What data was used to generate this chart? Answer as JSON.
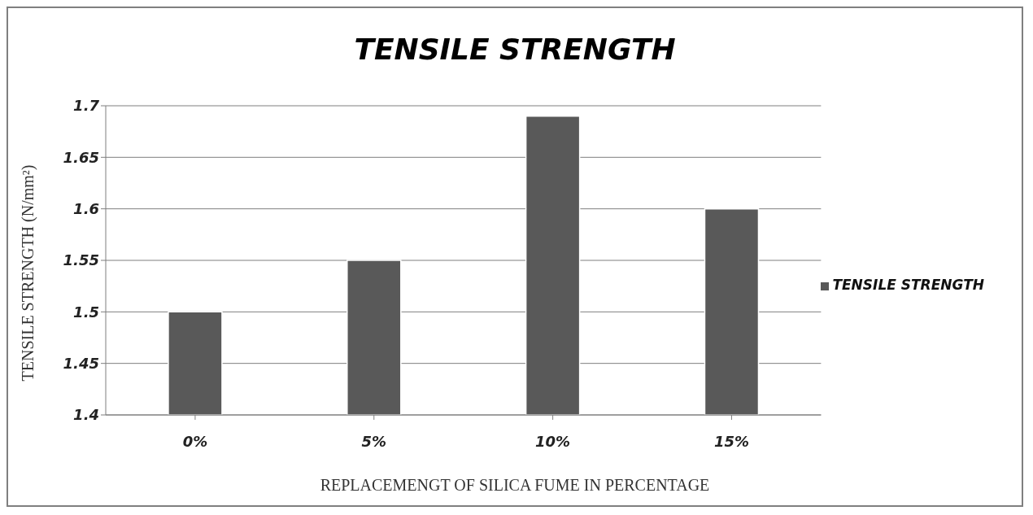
{
  "chart_data": {
    "type": "bar",
    "title": "TENSILE STRENGTH",
    "xlabel": "REPLACEMENGT OF SILICA FUME IN PERCENTAGE",
    "ylabel": "TENSILE STRENGTH (N/mm²)",
    "categories": [
      "0%",
      "5%",
      "10%",
      "15%"
    ],
    "series": [
      {
        "name": "TENSILE STRENGTH",
        "color": "#595959",
        "values": [
          1.5,
          1.55,
          1.69,
          1.6
        ]
      }
    ],
    "ylim": [
      1.4,
      1.7
    ],
    "yticks": [
      1.4,
      1.45,
      1.5,
      1.55,
      1.6,
      1.65,
      1.7
    ],
    "grid": "y",
    "legend": "right"
  }
}
